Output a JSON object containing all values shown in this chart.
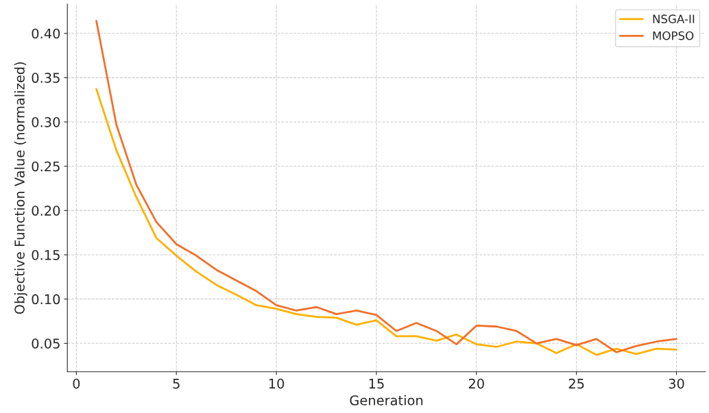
{
  "chart_data": {
    "type": "line",
    "xlabel": "Generation",
    "ylabel": "Objective Function Value (normalized)",
    "x": [
      1,
      2,
      3,
      4,
      5,
      6,
      7,
      8,
      9,
      10,
      11,
      12,
      13,
      14,
      15,
      16,
      17,
      18,
      19,
      20,
      21,
      22,
      23,
      24,
      25,
      26,
      27,
      28,
      29,
      30
    ],
    "series": [
      {
        "name": "NSGA-II",
        "color": "#ffb000",
        "values": [
          0.337,
          0.268,
          0.215,
          0.169,
          0.149,
          0.131,
          0.116,
          0.105,
          0.093,
          0.089,
          0.083,
          0.08,
          0.079,
          0.071,
          0.076,
          0.058,
          0.058,
          0.053,
          0.06,
          0.049,
          0.046,
          0.052,
          0.05,
          0.039,
          0.049,
          0.037,
          0.044,
          0.038,
          0.044,
          0.043
        ]
      },
      {
        "name": "MOPSO",
        "color": "#f0702a",
        "values": [
          0.414,
          0.297,
          0.229,
          0.187,
          0.162,
          0.149,
          0.133,
          0.121,
          0.109,
          0.093,
          0.087,
          0.091,
          0.083,
          0.087,
          0.082,
          0.064,
          0.073,
          0.064,
          0.049,
          0.07,
          0.069,
          0.064,
          0.05,
          0.055,
          0.048,
          0.055,
          0.04,
          0.047,
          0.052,
          0.055
        ]
      }
    ],
    "xlim": [
      -0.45,
      31.45
    ],
    "ylim": [
      0.018,
      0.433
    ],
    "xticks": [
      0,
      5,
      10,
      15,
      20,
      25,
      30
    ],
    "yticks": [
      {
        "value": 0.05,
        "label": "0.05"
      },
      {
        "value": 0.1,
        "label": "0.10"
      },
      {
        "value": 0.15,
        "label": "0.15"
      },
      {
        "value": 0.2,
        "label": "0.20"
      },
      {
        "value": 0.25,
        "label": "0.25"
      },
      {
        "value": 0.3,
        "label": "0.30"
      },
      {
        "value": 0.35,
        "label": "0.35"
      },
      {
        "value": 0.4,
        "label": "0.40"
      }
    ],
    "grid": true,
    "legend": "top right",
    "line_style": "solid",
    "marker": "none"
  }
}
